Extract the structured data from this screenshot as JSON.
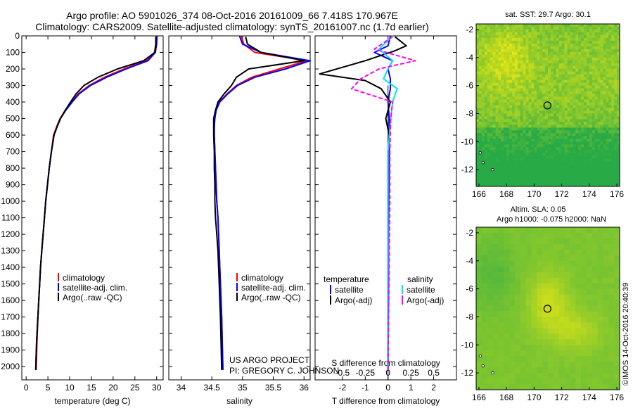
{
  "figure": {
    "title_line1": "Argo profile: AO 5901026_374 08-Oct-2016 20161009_66 7.418S 170.967E",
    "title_line2": "Climatology: CARS2009. Satellite-adjusted climatology: synTS_20161007.nc (1.7d earlier)",
    "credit_line1": "US ARGO PROJECT",
    "credit_line2": "PI: GREGORY C. JOHNSON",
    "imos_stamp": "©IMOS 14-Oct-2016 20:40:39"
  },
  "colors": {
    "climatology": "#ff0000",
    "satellite": "#0000ff",
    "argo": "#000000",
    "salinity_satellite": "#00e0ff",
    "salinity_argo": "#ff00ff",
    "sst_map": "#33cc33",
    "sla_map": "#44dd22"
  },
  "chart_data": [
    {
      "type": "line",
      "panel": "temperature",
      "xlabel": "temperature (deg C)",
      "ylabel": "",
      "xlim": [
        -1,
        31.5
      ],
      "ylim": [
        2080,
        0
      ],
      "xticks": [
        0,
        5,
        10,
        15,
        20,
        25,
        30
      ],
      "yticks": [
        0,
        100,
        200,
        300,
        400,
        500,
        600,
        700,
        800,
        900,
        1000,
        1100,
        1200,
        1300,
        1400,
        1500,
        1600,
        1700,
        1800,
        1900,
        2000
      ],
      "grid": false,
      "legend": [
        "climatology",
        "satellite-adj. clim.",
        "Argo(..raw -QC)"
      ],
      "series": [
        {
          "name": "climatology",
          "x": [
            29.9,
            29.8,
            29.5,
            27.5,
            22.5,
            18,
            14.5,
            12,
            10.5,
            9,
            7.8,
            7,
            6.3,
            5.8,
            5.3,
            4.9,
            4.5,
            4.2,
            3.9,
            3.6,
            3.3,
            3.1,
            2.9,
            2.7,
            2.5,
            2.3
          ],
          "y": [
            0,
            50,
            100,
            150,
            200,
            250,
            300,
            350,
            400,
            450,
            500,
            550,
            600,
            700,
            800,
            900,
            1000,
            1100,
            1200,
            1300,
            1400,
            1500,
            1600,
            1700,
            1850,
            2020
          ]
        },
        {
          "name": "satellite-adj. clim.",
          "x": [
            30.1,
            30,
            29.7,
            28,
            23,
            18.5,
            14.8,
            12.2,
            10.6,
            9.1,
            7.9,
            7.1,
            6.4,
            5.8,
            5.3,
            4.9,
            4.5,
            4.2,
            3.9,
            3.6,
            3.3,
            3.1,
            2.9,
            2.7,
            2.4,
            2.2
          ],
          "y": [
            0,
            50,
            100,
            150,
            200,
            250,
            300,
            350,
            400,
            450,
            500,
            550,
            600,
            700,
            800,
            900,
            1000,
            1100,
            1200,
            1300,
            1400,
            1500,
            1600,
            1700,
            1850,
            2020
          ]
        },
        {
          "name": "Argo(..raw -QC)",
          "x": [
            29.8,
            29.8,
            29.6,
            27,
            21,
            16.5,
            13.3,
            11.5,
            10.2,
            9,
            7.9,
            7.1,
            6.4,
            5.8,
            5.3,
            4.9,
            4.5,
            4.2,
            3.9,
            3.6,
            3.3,
            3.1,
            2.9,
            2.7,
            2.4,
            2.2
          ],
          "y": [
            5,
            50,
            100,
            150,
            200,
            250,
            300,
            350,
            400,
            450,
            500,
            550,
            600,
            700,
            800,
            900,
            1000,
            1100,
            1200,
            1300,
            1400,
            1500,
            1600,
            1700,
            1850,
            2020
          ]
        }
      ]
    },
    {
      "type": "line",
      "panel": "salinity",
      "xlabel": "salinity",
      "ylabel": "",
      "xlim": [
        33.8,
        36.1
      ],
      "ylim": [
        2080,
        0
      ],
      "xticks": [
        34,
        34.5,
        35,
        35.5,
        36
      ],
      "grid": false,
      "legend": [
        "climatology",
        "satellite-adj. clim.",
        "Argo(..raw -QC)"
      ],
      "series": [
        {
          "name": "climatology",
          "x": [
            34.98,
            35.02,
            35.2,
            36.05,
            35.6,
            35.15,
            34.9,
            34.75,
            34.62,
            34.56,
            34.54,
            34.54,
            34.54,
            34.55,
            34.56,
            34.57,
            34.58,
            34.6,
            34.61,
            34.62,
            34.63,
            34.64,
            34.65,
            34.66,
            34.67,
            34.68
          ],
          "y": [
            0,
            50,
            100,
            150,
            200,
            250,
            300,
            350,
            400,
            450,
            500,
            550,
            600,
            700,
            800,
            900,
            1000,
            1100,
            1200,
            1300,
            1400,
            1500,
            1600,
            1700,
            1850,
            2020
          ]
        },
        {
          "name": "satellite-adj. clim.",
          "x": [
            34.95,
            35.0,
            35.3,
            36.1,
            35.7,
            35.2,
            34.92,
            34.76,
            34.63,
            34.57,
            34.55,
            34.54,
            34.54,
            34.55,
            34.56,
            34.57,
            34.58,
            34.6,
            34.61,
            34.62,
            34.63,
            34.64,
            34.65,
            34.66,
            34.67,
            34.68
          ],
          "y": [
            0,
            50,
            100,
            150,
            200,
            250,
            300,
            350,
            400,
            450,
            500,
            550,
            600,
            700,
            800,
            900,
            1000,
            1100,
            1200,
            1300,
            1400,
            1500,
            1600,
            1700,
            1850,
            2020
          ]
        },
        {
          "name": "Argo(..raw -QC)",
          "x": [
            35.05,
            35.08,
            35.3,
            36.0,
            35.1,
            34.9,
            34.82,
            34.7,
            34.6,
            34.56,
            34.53,
            34.53,
            34.53,
            34.54,
            34.54,
            34.55,
            34.55,
            34.56,
            34.58,
            34.6,
            34.61,
            34.62,
            34.63,
            34.64,
            34.65,
            34.66
          ],
          "y": [
            5,
            50,
            100,
            150,
            200,
            250,
            300,
            350,
            400,
            450,
            500,
            550,
            600,
            700,
            800,
            900,
            1000,
            1100,
            1200,
            1300,
            1400,
            1500,
            1600,
            1700,
            1850,
            2020
          ]
        }
      ]
    },
    {
      "type": "line",
      "panel": "difference",
      "xlabel": "T difference from climatology",
      "x2label": "S difference from climatology",
      "xlim": [
        -3.2,
        3.0
      ],
      "x2lim": [
        -0.8,
        0.75
      ],
      "ylim": [
        2080,
        0
      ],
      "xticks": [
        -2,
        -1,
        0,
        1,
        2
      ],
      "x2ticks": [
        -0.5,
        -0.25,
        0,
        0.25,
        0.5
      ],
      "x2ticklabels": [
        "-0.5",
        "-0.25",
        "0",
        "0.25",
        "0.5"
      ],
      "grid": false,
      "legend": {
        "temperature_header": "temperature",
        "salinity_header": "salinity",
        "entries": [
          "satellite",
          "Argo(-adj)",
          "satellite",
          "Argo(-adj)"
        ]
      },
      "series": [
        {
          "name": "temperature satellite",
          "x": [
            0.1,
            0.0,
            -0.6,
            0.2,
            0.0,
            0.1,
            0.1,
            0.0,
            0.05,
            0.05,
            0.05,
            0.05,
            0.03,
            0.02,
            0.02,
            0.0
          ],
          "y": [
            0,
            60,
            100,
            150,
            200,
            260,
            320,
            400,
            500,
            600,
            700,
            800,
            1000,
            1200,
            1600,
            2020
          ]
        },
        {
          "name": "temperature Argo(-adj)",
          "x": [
            0.3,
            0.8,
            0.3,
            -1.0,
            -2.0,
            -3.0,
            -1.0,
            -0.3,
            0.1,
            -0.1,
            0.05,
            0.0,
            0.0,
            0.0,
            0.0,
            0.0
          ],
          "y": [
            5,
            60,
            90,
            150,
            190,
            230,
            270,
            320,
            400,
            500,
            600,
            700,
            900,
            1200,
            1600,
            2020
          ]
        },
        {
          "name": "salinity satellite",
          "x": [
            0.05,
            -0.1,
            0.05,
            0.0,
            -0.05,
            0.1,
            0.05,
            0.03,
            0.0,
            0.0,
            0.0,
            0.0
          ],
          "y": [
            0,
            80,
            150,
            200,
            260,
            320,
            400,
            500,
            700,
            1000,
            1500,
            2020
          ]
        },
        {
          "name": "salinity Argo(-adj)",
          "x": [
            0.05,
            -0.15,
            0.3,
            -0.1,
            -0.3,
            -0.4,
            0.05,
            0.03,
            0.02,
            0.02,
            0.01,
            0.0
          ],
          "y": [
            5,
            80,
            150,
            200,
            260,
            320,
            400,
            500,
            700,
            1000,
            1500,
            2020
          ]
        }
      ]
    },
    {
      "type": "heatmap",
      "panel": "sst_map",
      "title": "sat. SST: 29.7  Argo: 30.1",
      "xlim": [
        165.8,
        176.2
      ],
      "ylim": [
        -13.2,
        -1.6
      ],
      "xticks": [
        166,
        168,
        170,
        172,
        174,
        176
      ],
      "yticks": [
        -2,
        -4,
        -6,
        -8,
        -10,
        -12
      ],
      "marker": {
        "lon": 170.967,
        "lat": -7.418
      }
    },
    {
      "type": "heatmap",
      "panel": "sla_map",
      "title_line1": "Altim. SLA: 0.05",
      "title_line2": "Argo h1000: -0.075 h2000: NaN",
      "xlim": [
        165.8,
        176.2
      ],
      "ylim": [
        -13.2,
        -1.6
      ],
      "xticks": [
        166,
        168,
        170,
        172,
        174,
        176
      ],
      "yticks": [
        -2,
        -4,
        -6,
        -8,
        -10,
        -12
      ],
      "marker": {
        "lon": 170.967,
        "lat": -7.418
      }
    }
  ]
}
